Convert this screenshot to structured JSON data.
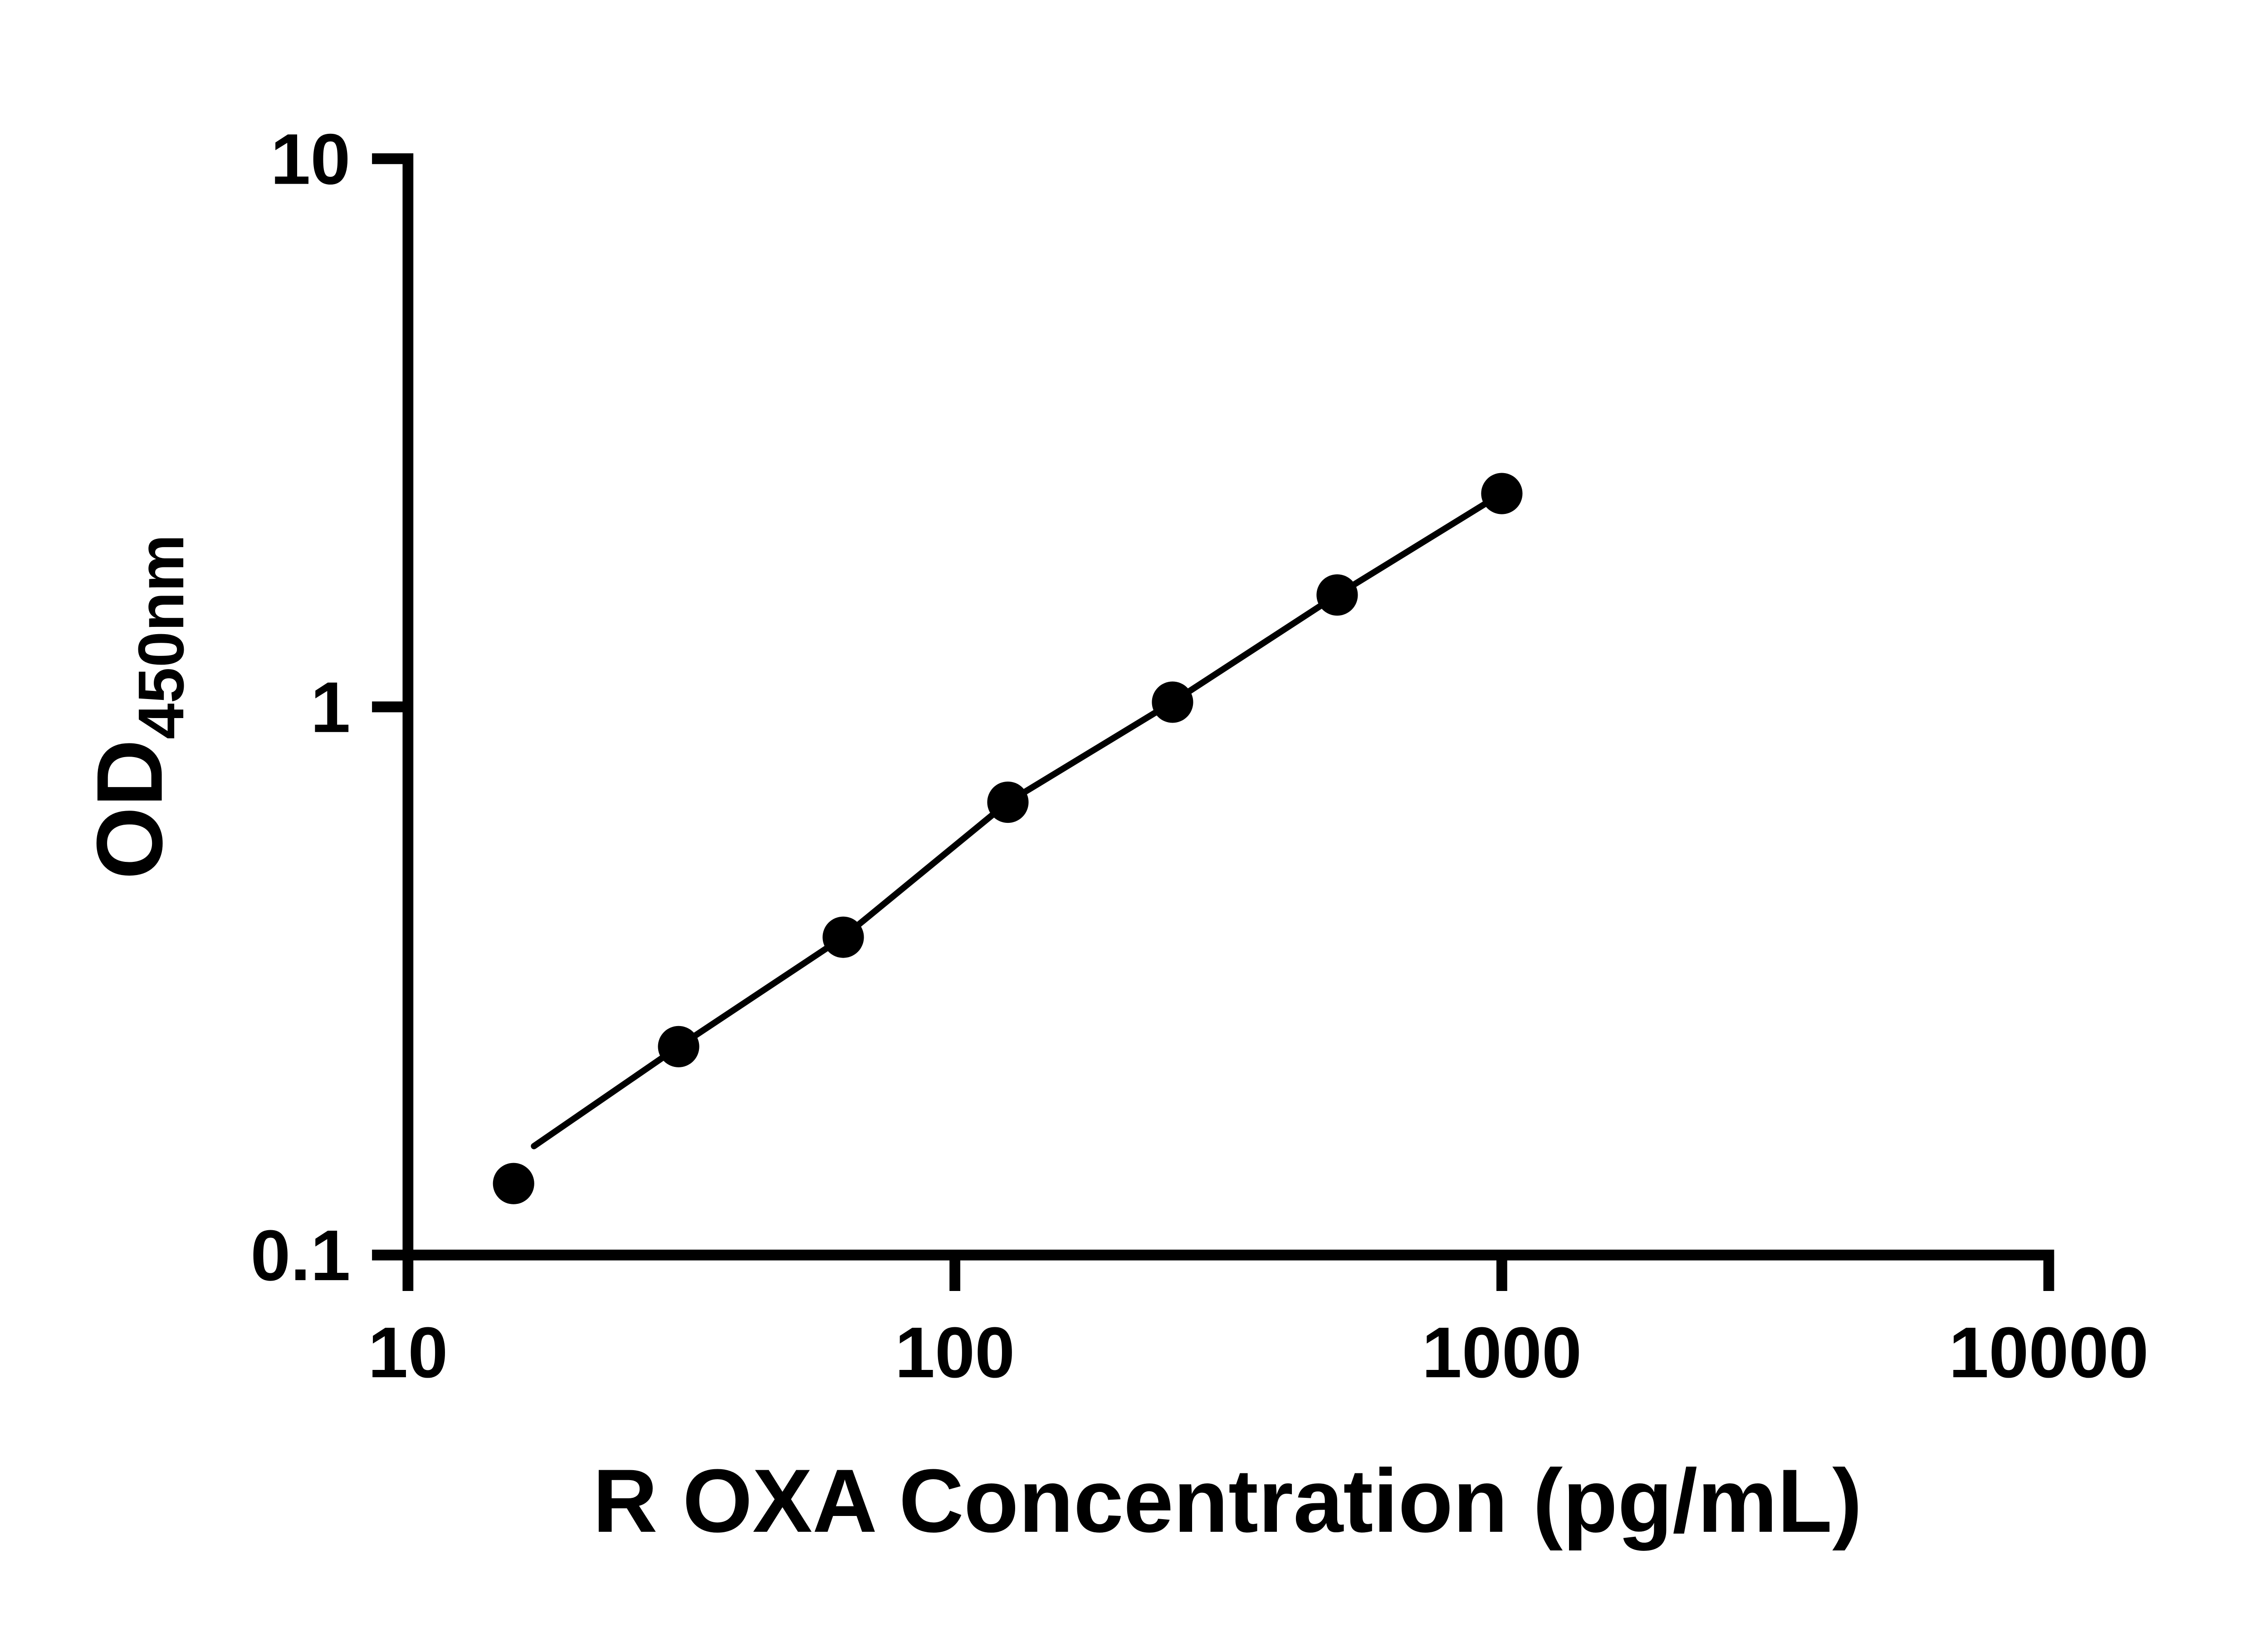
{
  "chart_data": {
    "type": "scatter",
    "title": "",
    "xlabel": "R OXA Concentration (pg/mL)",
    "ylabel": "OD450nm",
    "ylabel_main": "OD",
    "ylabel_sub": "450nm",
    "x_scale": "log",
    "y_scale": "log",
    "xlim": [
      10,
      10000
    ],
    "ylim": [
      0.1,
      10
    ],
    "grid": false,
    "legend": false,
    "x_ticks": [
      {
        "value": 10,
        "label": "10"
      },
      {
        "value": 100,
        "label": "100"
      },
      {
        "value": 1000,
        "label": "1000"
      },
      {
        "value": 10000,
        "label": "10000"
      }
    ],
    "y_ticks": [
      {
        "value": 0.1,
        "label": "0.1"
      },
      {
        "value": 1,
        "label": "1"
      },
      {
        "value": 10,
        "label": "10"
      }
    ],
    "points": [
      {
        "x": 15.6,
        "y": 0.135
      },
      {
        "x": 31.25,
        "y": 0.24
      },
      {
        "x": 62.5,
        "y": 0.38
      },
      {
        "x": 125,
        "y": 0.67
      },
      {
        "x": 250,
        "y": 1.02
      },
      {
        "x": 500,
        "y": 1.6
      },
      {
        "x": 1000,
        "y": 2.45
      }
    ],
    "line_start": {
      "x": 17,
      "y": 0.158
    },
    "marker_color": "#000000",
    "line_color": "#000000",
    "axis_color": "#000000"
  }
}
